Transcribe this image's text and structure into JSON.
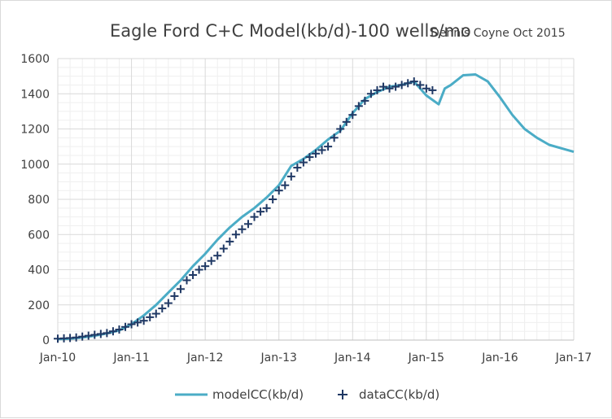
{
  "chart_data": {
    "type": "line",
    "title": "Eagle Ford C+C Model(kb/d)-100 wells/mo",
    "subtitle": "Dennis Coyne Oct 2015",
    "xlabel": "",
    "ylabel": "",
    "x_tick_labels": [
      "Jan-10",
      "Jan-11",
      "Jan-12",
      "Jan-13",
      "Jan-14",
      "Jan-15",
      "Jan-16",
      "Jan-17"
    ],
    "y_tick_labels": [
      "0",
      "200",
      "400",
      "600",
      "800",
      "1000",
      "1200",
      "1400",
      "1600"
    ],
    "xlim": [
      0,
      84
    ],
    "ylim": [
      0,
      1600
    ],
    "grid": true,
    "legend_position": "bottom",
    "colors": {
      "model": "#4bacc6",
      "data": "#1f3864",
      "grid": "#d9d9d9",
      "text": "#404040"
    },
    "series": [
      {
        "name": "modelCC(kb/d)",
        "style": "line",
        "x": [
          0,
          2,
          4,
          6,
          8,
          10,
          12,
          14,
          16,
          18,
          20,
          22,
          24,
          26,
          28,
          30,
          32,
          34,
          36,
          38,
          40,
          42,
          44,
          46,
          48,
          50,
          52,
          54,
          56,
          58,
          59,
          60,
          62,
          63,
          64,
          66,
          68,
          70,
          72,
          74,
          76,
          78,
          80,
          82,
          84
        ],
        "y": [
          5,
          8,
          15,
          25,
          38,
          55,
          90,
          140,
          200,
          270,
          340,
          420,
          490,
          570,
          640,
          700,
          750,
          810,
          880,
          990,
          1030,
          1080,
          1140,
          1190,
          1290,
          1370,
          1410,
          1440,
          1450,
          1470,
          1430,
          1390,
          1340,
          1430,
          1450,
          1505,
          1510,
          1470,
          1380,
          1280,
          1200,
          1150,
          1110,
          1090,
          1070
        ]
      },
      {
        "name": "dataCC(kb/d)",
        "style": "markers",
        "x": [
          0,
          1,
          2,
          3,
          4,
          5,
          6,
          7,
          8,
          9,
          10,
          11,
          12,
          13,
          14,
          15,
          16,
          17,
          18,
          19,
          20,
          21,
          22,
          23,
          24,
          25,
          26,
          27,
          28,
          29,
          30,
          31,
          32,
          33,
          34,
          35,
          36,
          37,
          38,
          39,
          40,
          41,
          42,
          43,
          44,
          45,
          46,
          47,
          48,
          49,
          50,
          51,
          52,
          53,
          54,
          55,
          56,
          57,
          58,
          59,
          60,
          61
        ],
        "y": [
          8,
          10,
          12,
          15,
          20,
          25,
          30,
          35,
          40,
          50,
          60,
          75,
          90,
          100,
          110,
          130,
          150,
          180,
          210,
          250,
          290,
          340,
          370,
          400,
          420,
          450,
          480,
          520,
          560,
          600,
          630,
          660,
          700,
          730,
          750,
          800,
          850,
          880,
          930,
          980,
          1010,
          1040,
          1060,
          1080,
          1100,
          1150,
          1200,
          1240,
          1280,
          1330,
          1360,
          1400,
          1420,
          1440,
          1430,
          1440,
          1450,
          1460,
          1470,
          1450,
          1430,
          1420
        ]
      }
    ]
  }
}
